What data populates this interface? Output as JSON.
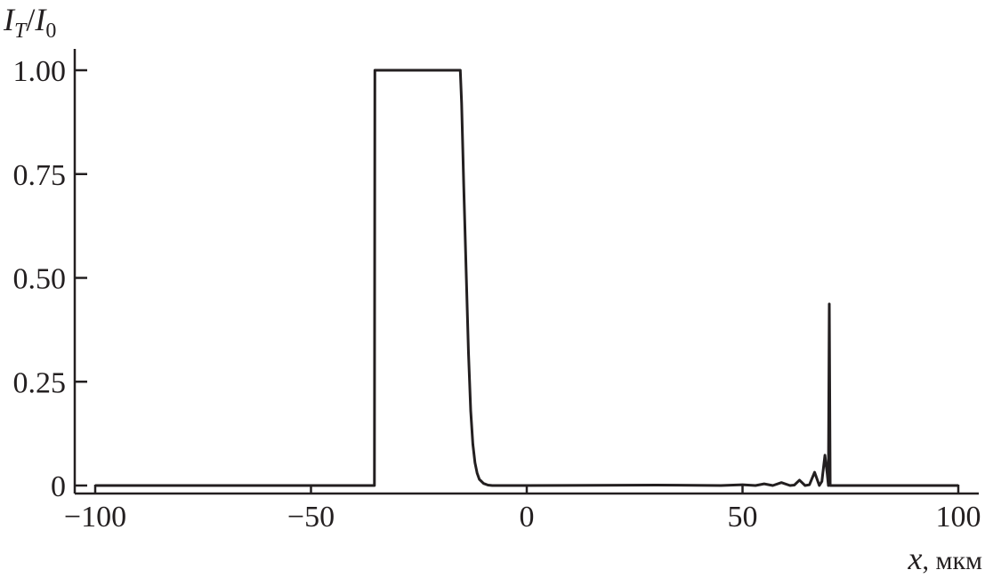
{
  "chart_data": {
    "type": "line",
    "title": "",
    "ylabel": {
      "main": "I",
      "sub": "T",
      "sep": "/",
      "main2": "I",
      "sub2": "0"
    },
    "xlabel": {
      "var": "x",
      "unit": ", мкм"
    },
    "xlim": [
      -100,
      100
    ],
    "ylim": [
      0,
      1.0
    ],
    "grid": false,
    "x_ticks": [
      -100,
      -50,
      0,
      50,
      100
    ],
    "x_tick_labels": [
      "−100",
      "−50",
      "0",
      "50",
      "100"
    ],
    "y_ticks": [
      0,
      0.25,
      0.5,
      0.75,
      1.0
    ],
    "y_tick_labels": [
      "0",
      "0.25",
      "0.50",
      "0.75",
      "1.00"
    ],
    "line_color": "#231f20",
    "series": [
      {
        "x": [
          -100,
          -35.3,
          -35.2,
          -15.4,
          -15.1,
          -14.6,
          -14.0,
          -13.5,
          -13.0,
          -12.5,
          -12.0,
          -11.5,
          -11.0,
          -10.0,
          -9.0,
          -8.0,
          0,
          30,
          45,
          50,
          53,
          55,
          57,
          59,
          61,
          62,
          63.2,
          64.5,
          65.5,
          66.7,
          67.8,
          68.4,
          69.1,
          69.6,
          69.9,
          70.1,
          70.3,
          70.5,
          100
        ],
        "y": [
          0,
          0,
          1.0,
          1.0,
          0.92,
          0.72,
          0.5,
          0.32,
          0.18,
          0.1,
          0.055,
          0.03,
          0.015,
          0.005,
          0.001,
          0,
          0,
          0.001,
          0,
          0.002,
          0,
          0.004,
          0,
          0.007,
          0,
          0.001,
          0.013,
          0,
          0.002,
          0.032,
          0,
          0.01,
          0.073,
          0.03,
          0,
          0.437,
          0,
          0,
          0
        ]
      }
    ]
  }
}
